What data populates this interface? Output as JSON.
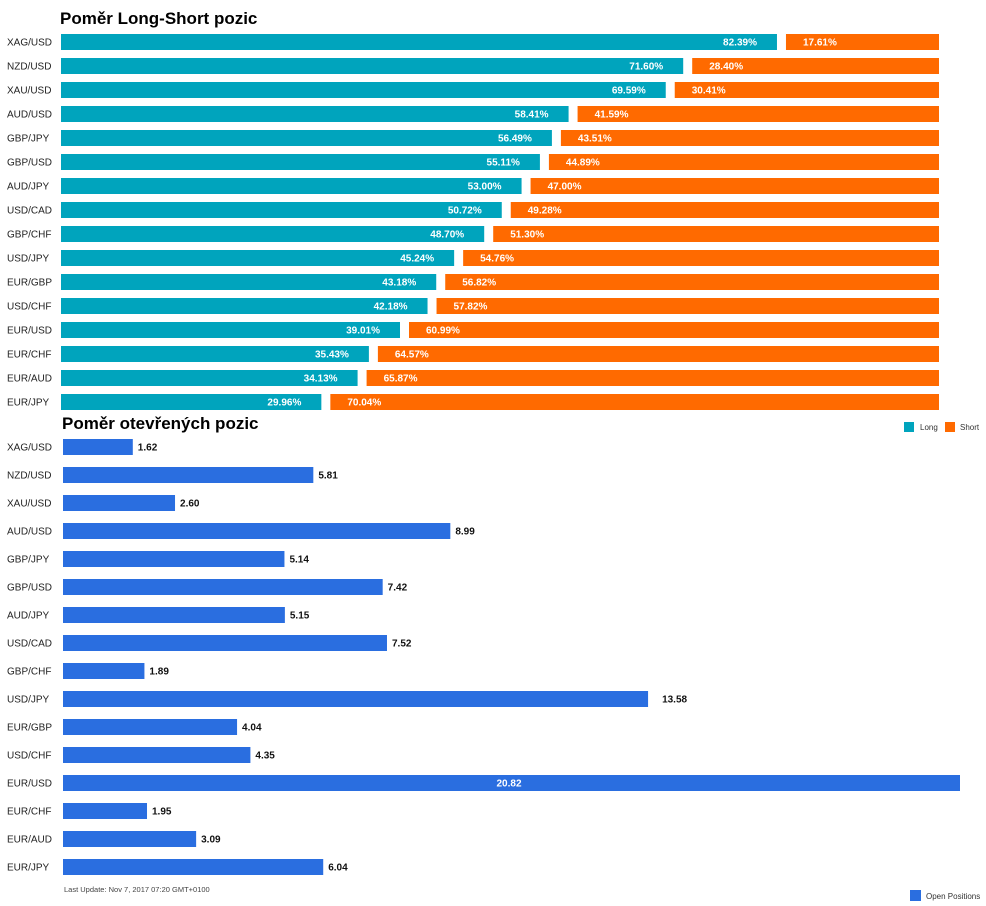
{
  "colors": {
    "long": "#00a4bd",
    "short": "#ff6a00",
    "open": "#2a6ee0"
  },
  "chart_data": [
    {
      "type": "bar",
      "stacked": true,
      "orientation": "horizontal",
      "title": "Poměr Long-Short pozic",
      "categories": [
        "XAG/USD",
        "NZD/USD",
        "XAU/USD",
        "AUD/USD",
        "GBP/JPY",
        "GBP/USD",
        "AUD/JPY",
        "USD/CAD",
        "GBP/CHF",
        "USD/JPY",
        "EUR/GBP",
        "USD/CHF",
        "EUR/USD",
        "EUR/CHF",
        "EUR/AUD",
        "EUR/JPY"
      ],
      "series": [
        {
          "name": "Long",
          "values": [
            82.39,
            71.6,
            69.59,
            58.41,
            56.49,
            55.11,
            53.0,
            50.72,
            48.7,
            45.24,
            43.18,
            42.18,
            39.01,
            35.43,
            34.13,
            29.96
          ]
        },
        {
          "name": "Short",
          "values": [
            17.61,
            28.4,
            30.41,
            41.59,
            43.51,
            44.89,
            47.0,
            49.28,
            51.3,
            54.76,
            56.82,
            57.82,
            60.99,
            64.57,
            65.87,
            70.04
          ]
        }
      ],
      "labels": {
        "long": [
          "82.39%",
          "71.60%",
          "69.59%",
          "58.41%",
          "56.49%",
          "55.11%",
          "53.00%",
          "50.72%",
          "48.70%",
          "45.24%",
          "43.18%",
          "42.18%",
          "39.01%",
          "35.43%",
          "34.13%",
          "29.96%"
        ],
        "short": [
          "17.61%",
          "28.40%",
          "30.41%",
          "41.59%",
          "43.51%",
          "44.89%",
          "47.00%",
          "49.28%",
          "51.30%",
          "54.76%",
          "56.82%",
          "57.82%",
          "60.99%",
          "64.57%",
          "65.87%",
          "70.04%"
        ]
      },
      "legend_position": "bottom-right"
    },
    {
      "type": "bar",
      "orientation": "horizontal",
      "title": "Poměr otevřených pozic",
      "categories": [
        "XAG/USD",
        "NZD/USD",
        "XAU/USD",
        "AUD/USD",
        "GBP/JPY",
        "GBP/USD",
        "AUD/JPY",
        "USD/CAD",
        "GBP/CHF",
        "USD/JPY",
        "EUR/GBP",
        "USD/CHF",
        "EUR/USD",
        "EUR/CHF",
        "EUR/AUD",
        "EUR/JPY"
      ],
      "series": [
        {
          "name": "Open Positions",
          "values": [
            1.62,
            5.81,
            2.6,
            8.99,
            5.14,
            7.42,
            5.15,
            7.52,
            1.89,
            13.58,
            4.04,
            4.35,
            20.82,
            1.95,
            3.09,
            6.04
          ]
        }
      ],
      "labels": [
        "1.62",
        "5.81",
        "2.60",
        "8.99",
        "5.14",
        "7.42",
        "5.15",
        "7.52",
        "1.89",
        "13.58",
        "4.04",
        "4.35",
        "20.82",
        "1.95",
        "3.09",
        "6.04"
      ],
      "legend_position": "bottom-right"
    }
  ],
  "footer": {
    "last_update": "Last Update: Nov 7, 2017 07:20 GMT+0100"
  }
}
